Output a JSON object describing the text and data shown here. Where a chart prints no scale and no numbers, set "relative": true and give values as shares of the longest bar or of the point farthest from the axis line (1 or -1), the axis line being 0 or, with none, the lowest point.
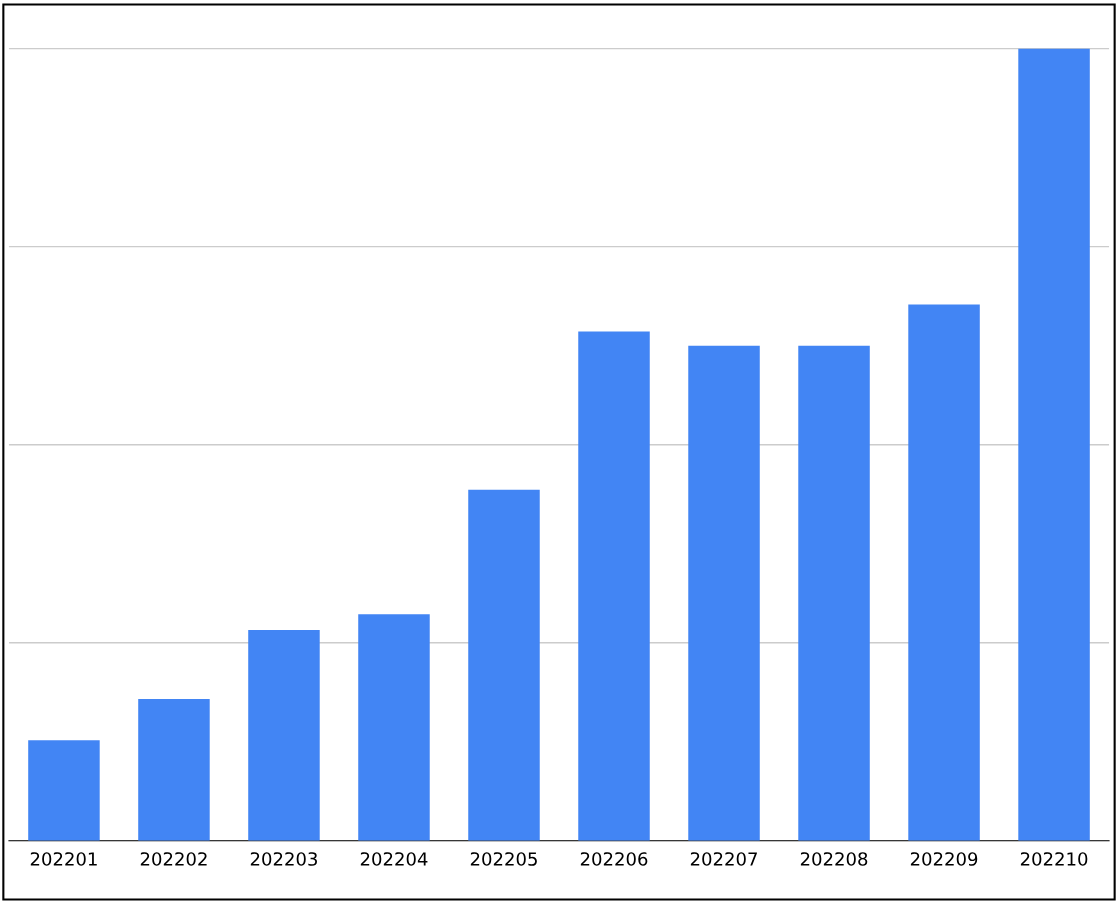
{
  "chart_data": {
    "type": "bar",
    "relative": true,
    "categories": [
      "202201",
      "202202",
      "202203",
      "202204",
      "202205",
      "202206",
      "202207",
      "202208",
      "202209",
      "202210"
    ],
    "values": [
      0.127,
      0.179,
      0.266,
      0.286,
      0.443,
      0.643,
      0.625,
      0.625,
      0.677,
      1
    ],
    "color": "#4285f4",
    "grid": "y",
    "legend": false
  }
}
